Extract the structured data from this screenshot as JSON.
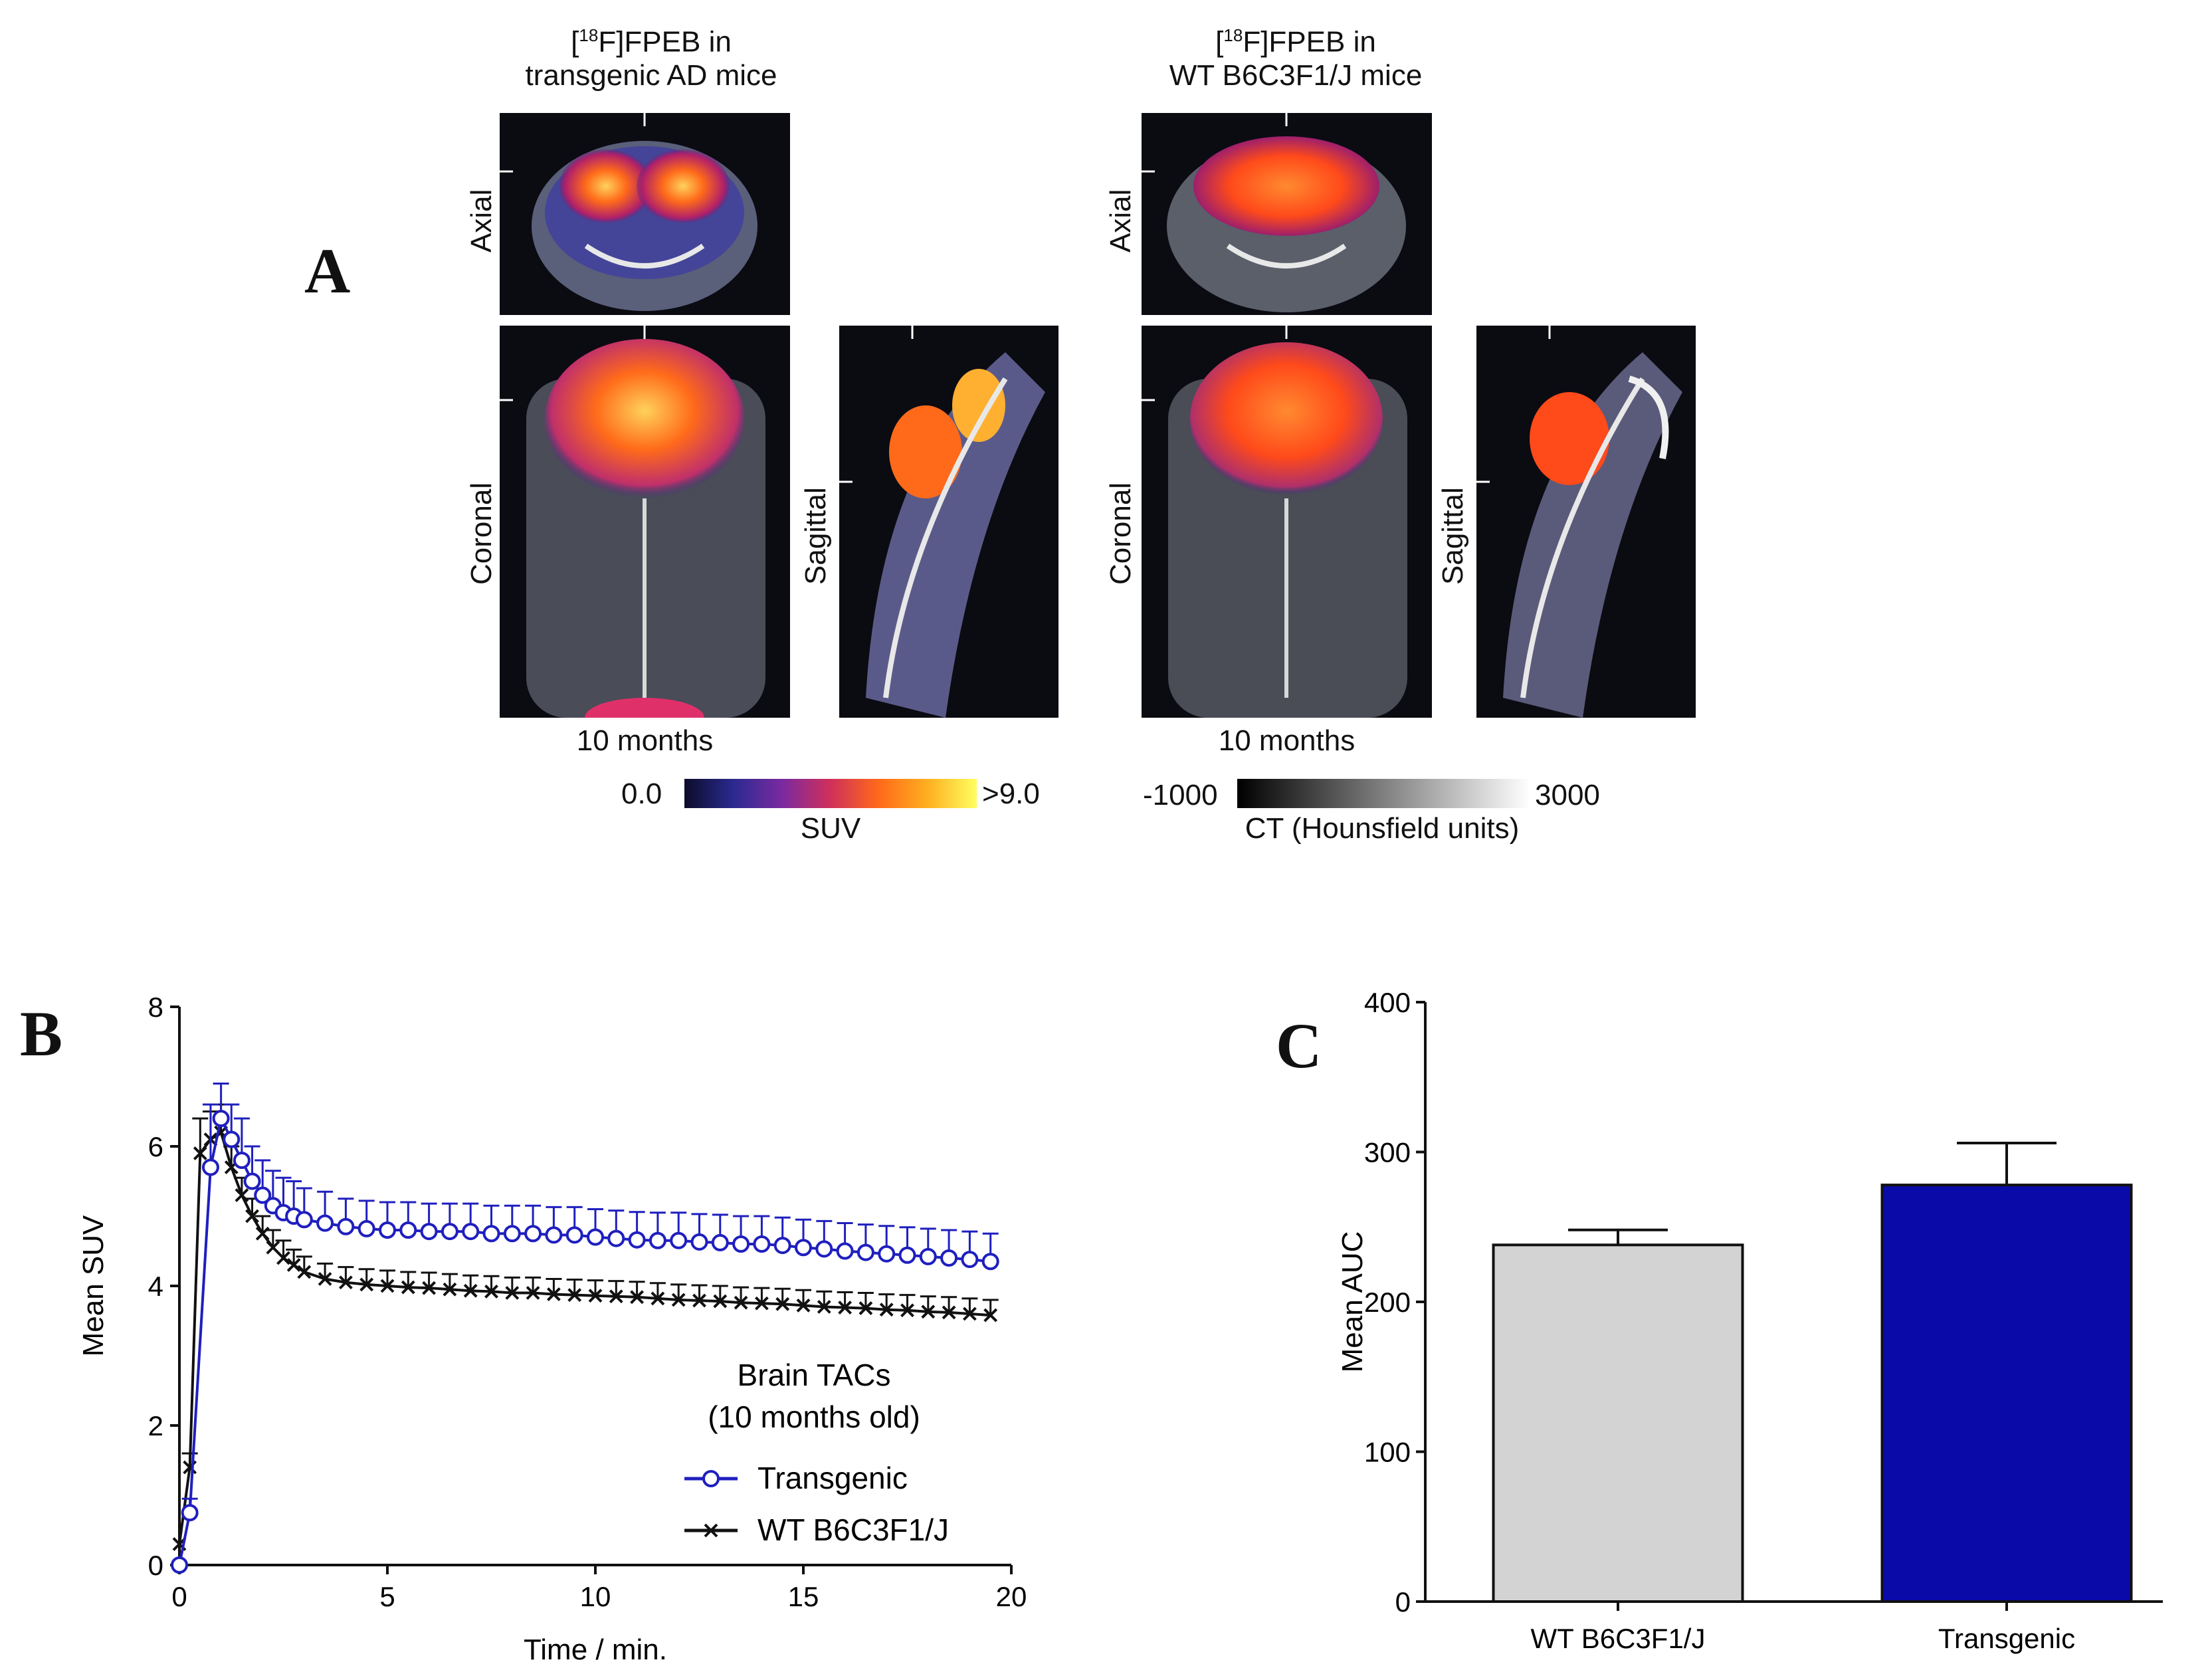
{
  "panel_labels": {
    "a": "A",
    "b": "B",
    "c": "C"
  },
  "panel_a": {
    "groups": [
      {
        "title_line1_bracket": "[",
        "title_line1_sup": "18",
        "title_line1_rest": "F]FPEB in",
        "title_line2": "transgenic AD mice",
        "age": "10 months"
      },
      {
        "title_line1_bracket": "[",
        "title_line1_sup": "18",
        "title_line1_rest": "F]FPEB in",
        "title_line2": "WT B6C3F1/J mice",
        "age": "10 months"
      }
    ],
    "views": {
      "axial": "Axial",
      "coronal": "Coronal",
      "sagittal": "Sagittal"
    },
    "suv_scale": {
      "min": "0.0",
      "max": ">9.0",
      "label": "SUV"
    },
    "ct_scale": {
      "min": "-1000",
      "max": "3000",
      "label": "CT (Hounsfield units)"
    }
  },
  "colors": {
    "transgenic": "#1f1fbf",
    "wt": "#111111",
    "bar_wt": "#d3d3d3",
    "bar_tg": "#0a0aa8"
  },
  "chart_data": [
    {
      "type": "line",
      "title": "",
      "xlabel": "Time / min.",
      "ylabel": "Mean  SUV",
      "xlim": [
        0,
        20
      ],
      "ylim": [
        0,
        8
      ],
      "xticks": [
        "0",
        "5",
        "10",
        "15",
        "20"
      ],
      "yticks": [
        "0",
        "2",
        "4",
        "6",
        "8"
      ],
      "legend_title": [
        "Brain TACs",
        "(10 months old)"
      ],
      "series": [
        {
          "name": "Transgenic",
          "x": [
            0.0,
            0.25,
            0.75,
            1.0,
            1.25,
            1.5,
            1.75,
            2.0,
            2.25,
            2.5,
            2.75,
            3.0,
            3.5,
            4.0,
            4.5,
            5.0,
            5.5,
            6.0,
            6.5,
            7.0,
            7.5,
            8.0,
            8.5,
            9.0,
            9.5,
            10.0,
            10.5,
            11.0,
            11.5,
            12.0,
            12.5,
            13.0,
            13.5,
            14.0,
            14.5,
            15.0,
            15.5,
            16.0,
            16.5,
            17.0,
            17.5,
            18.0,
            18.5,
            19.0,
            19.5
          ],
          "values": [
            0.0,
            0.75,
            5.7,
            6.4,
            6.1,
            5.8,
            5.5,
            5.3,
            5.15,
            5.05,
            5.0,
            4.95,
            4.9,
            4.85,
            4.82,
            4.8,
            4.8,
            4.78,
            4.78,
            4.78,
            4.75,
            4.75,
            4.75,
            4.73,
            4.73,
            4.7,
            4.68,
            4.66,
            4.65,
            4.65,
            4.63,
            4.62,
            4.6,
            4.6,
            4.58,
            4.55,
            4.53,
            4.5,
            4.48,
            4.46,
            4.44,
            4.42,
            4.4,
            4.38,
            4.35
          ],
          "errors": [
            0.0,
            0.2,
            0.9,
            0.5,
            0.5,
            0.6,
            0.5,
            0.5,
            0.5,
            0.5,
            0.5,
            0.45,
            0.45,
            0.4,
            0.4,
            0.4,
            0.4,
            0.4,
            0.4,
            0.4,
            0.4,
            0.4,
            0.4,
            0.4,
            0.4,
            0.4,
            0.4,
            0.4,
            0.4,
            0.4,
            0.4,
            0.4,
            0.4,
            0.4,
            0.4,
            0.4,
            0.4,
            0.4,
            0.4,
            0.4,
            0.4,
            0.4,
            0.4,
            0.4,
            0.4
          ]
        },
        {
          "name": "WT B6C3F1/J",
          "x": [
            0.0,
            0.25,
            0.5,
            0.75,
            1.0,
            1.25,
            1.5,
            1.75,
            2.0,
            2.25,
            2.5,
            2.75,
            3.0,
            3.5,
            4.0,
            4.5,
            5.0,
            5.5,
            6.0,
            6.5,
            7.0,
            7.5,
            8.0,
            8.5,
            9.0,
            9.5,
            10.0,
            10.5,
            11.0,
            11.5,
            12.0,
            12.5,
            13.0,
            13.5,
            14.0,
            14.5,
            15.0,
            15.5,
            16.0,
            16.5,
            17.0,
            17.5,
            18.0,
            18.5,
            19.0,
            19.5
          ],
          "values": [
            0.3,
            1.4,
            5.9,
            6.1,
            6.2,
            5.7,
            5.3,
            5.0,
            4.75,
            4.55,
            4.4,
            4.3,
            4.2,
            4.1,
            4.05,
            4.02,
            4.0,
            3.98,
            3.97,
            3.95,
            3.93,
            3.92,
            3.9,
            3.9,
            3.88,
            3.87,
            3.86,
            3.85,
            3.84,
            3.82,
            3.8,
            3.79,
            3.78,
            3.76,
            3.75,
            3.74,
            3.72,
            3.7,
            3.69,
            3.68,
            3.66,
            3.65,
            3.63,
            3.62,
            3.6,
            3.58
          ],
          "errors": [
            0.0,
            0.2,
            0.5,
            0.4,
            0.4,
            0.3,
            0.25,
            0.25,
            0.25,
            0.25,
            0.25,
            0.22,
            0.22,
            0.22,
            0.22,
            0.22,
            0.22,
            0.22,
            0.22,
            0.22,
            0.22,
            0.22,
            0.22,
            0.22,
            0.22,
            0.22,
            0.22,
            0.22,
            0.22,
            0.22,
            0.22,
            0.22,
            0.22,
            0.22,
            0.22,
            0.22,
            0.22,
            0.22,
            0.22,
            0.22,
            0.22,
            0.22,
            0.22,
            0.22,
            0.22,
            0.22
          ]
        }
      ]
    },
    {
      "type": "bar",
      "title": "",
      "xlabel": "",
      "ylabel": "Mean AUC",
      "categories": [
        "WT B6C3F1/J",
        "Transgenic"
      ],
      "values": [
        238,
        278
      ],
      "errors": [
        10,
        28
      ],
      "ylim": [
        0,
        400
      ],
      "yticks": [
        "0",
        "100",
        "200",
        "300",
        "400"
      ]
    }
  ]
}
